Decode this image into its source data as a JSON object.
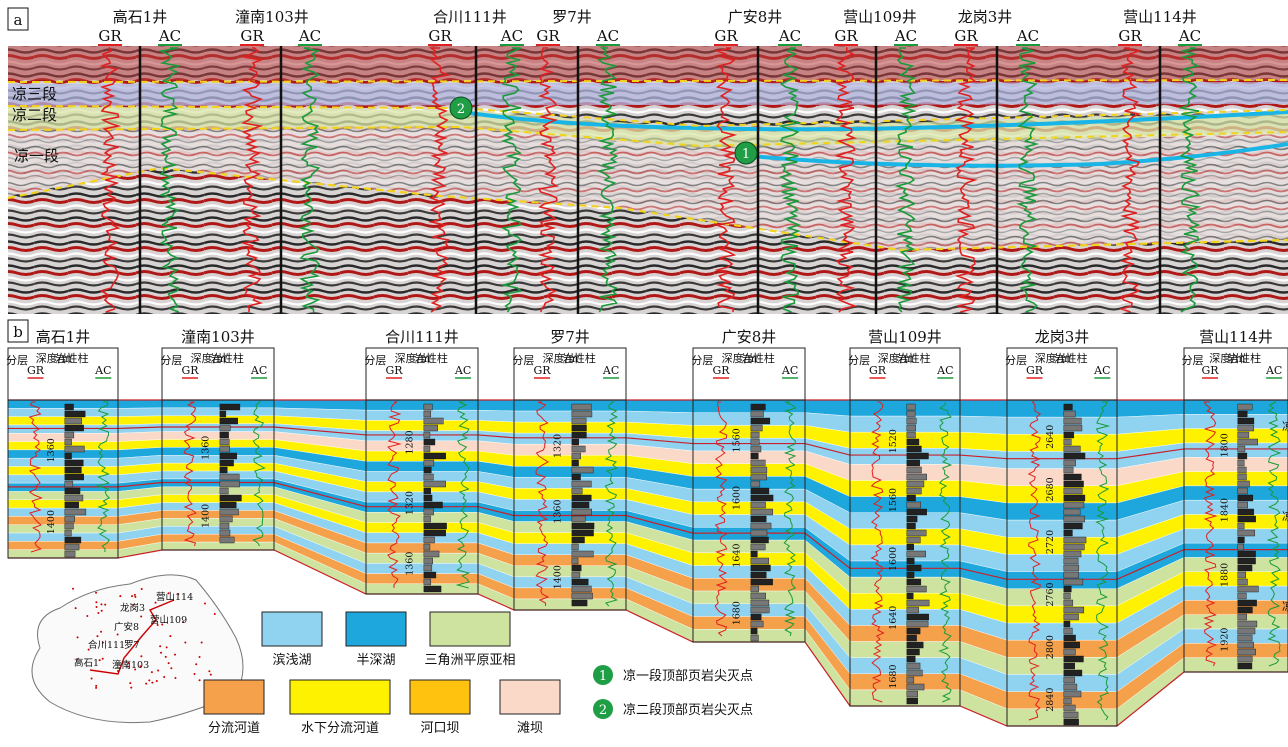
{
  "panel_a": {
    "label": "a",
    "wells": [
      {
        "name": "高石1井",
        "gr": "GR",
        "ac": "AC"
      },
      {
        "name": "潼南103井",
        "gr": "GR",
        "ac": "AC"
      },
      {
        "name": "合川111井",
        "gr": "GR",
        "ac": "AC"
      },
      {
        "name": "罗7井",
        "gr": "GR",
        "ac": "AC"
      },
      {
        "name": "广安8井",
        "gr": "GR",
        "ac": "AC"
      },
      {
        "name": "营山109井",
        "gr": "GR",
        "ac": "AC"
      },
      {
        "name": "龙岗3井",
        "gr": "GR",
        "ac": "AC"
      },
      {
        "name": "营山114井",
        "gr": "GR",
        "ac": "AC"
      }
    ],
    "zones": [
      "凉三段",
      "凉二段",
      "凉一段"
    ],
    "markers": [
      "1",
      "2"
    ]
  },
  "panel_b": {
    "label": "b",
    "col_headers": {
      "layer": "分层",
      "gr": "GR",
      "depth": "深度/m",
      "lith": "岩性柱",
      "ac": "AC"
    },
    "wells": [
      {
        "name": "高石1井",
        "depths": [
          "1360",
          "1400"
        ]
      },
      {
        "name": "潼南103井",
        "depths": [
          "1360",
          "1400"
        ]
      },
      {
        "name": "合川111井",
        "depths": [
          "1280",
          "1320",
          "1360"
        ]
      },
      {
        "name": "罗7井",
        "depths": [
          "1320",
          "1360",
          "1400"
        ]
      },
      {
        "name": "广安8井",
        "depths": [
          "1560",
          "1600",
          "1640",
          "1680"
        ]
      },
      {
        "name": "营山109井",
        "depths": [
          "1520",
          "1560",
          "1600",
          "1640",
          "1680"
        ]
      },
      {
        "name": "龙岗3井",
        "depths": [
          "2640",
          "2680",
          "2720",
          "2760",
          "2800",
          "2840"
        ]
      },
      {
        "name": "营山114井",
        "depths": [
          "1800",
          "1840",
          "1880",
          "1920"
        ],
        "layers": [
          "凉三段",
          "凉二段",
          "凉一段"
        ]
      }
    ],
    "map_wells": [
      "营山114",
      "龙岗3",
      "广安8",
      "营山109",
      "合川111",
      "罗7",
      "高石1",
      "潼南103"
    ],
    "legend": [
      {
        "label": "滨浅湖",
        "color": "#8fd3f0"
      },
      {
        "label": "半深湖",
        "color": "#1ea7dc"
      },
      {
        "label": "三角洲平原亚相",
        "color": "#cfe3a0"
      },
      {
        "label": "分流河道",
        "color": "#f5a04a"
      },
      {
        "label": "水下分流河道",
        "color": "#fff200"
      },
      {
        "label": "河口坝",
        "color": "#ffc20e"
      },
      {
        "label": "滩坝",
        "color": "#fbd9c8"
      }
    ],
    "marker_legend": [
      {
        "num": "1",
        "label": "凉一段顶部页岩尖灭点"
      },
      {
        "num": "2",
        "label": "凉二段顶部页岩尖灭点"
      }
    ]
  },
  "colors": {
    "gr": "#e02020",
    "ac": "#1a9a3a",
    "marker": "#1f9e46"
  }
}
